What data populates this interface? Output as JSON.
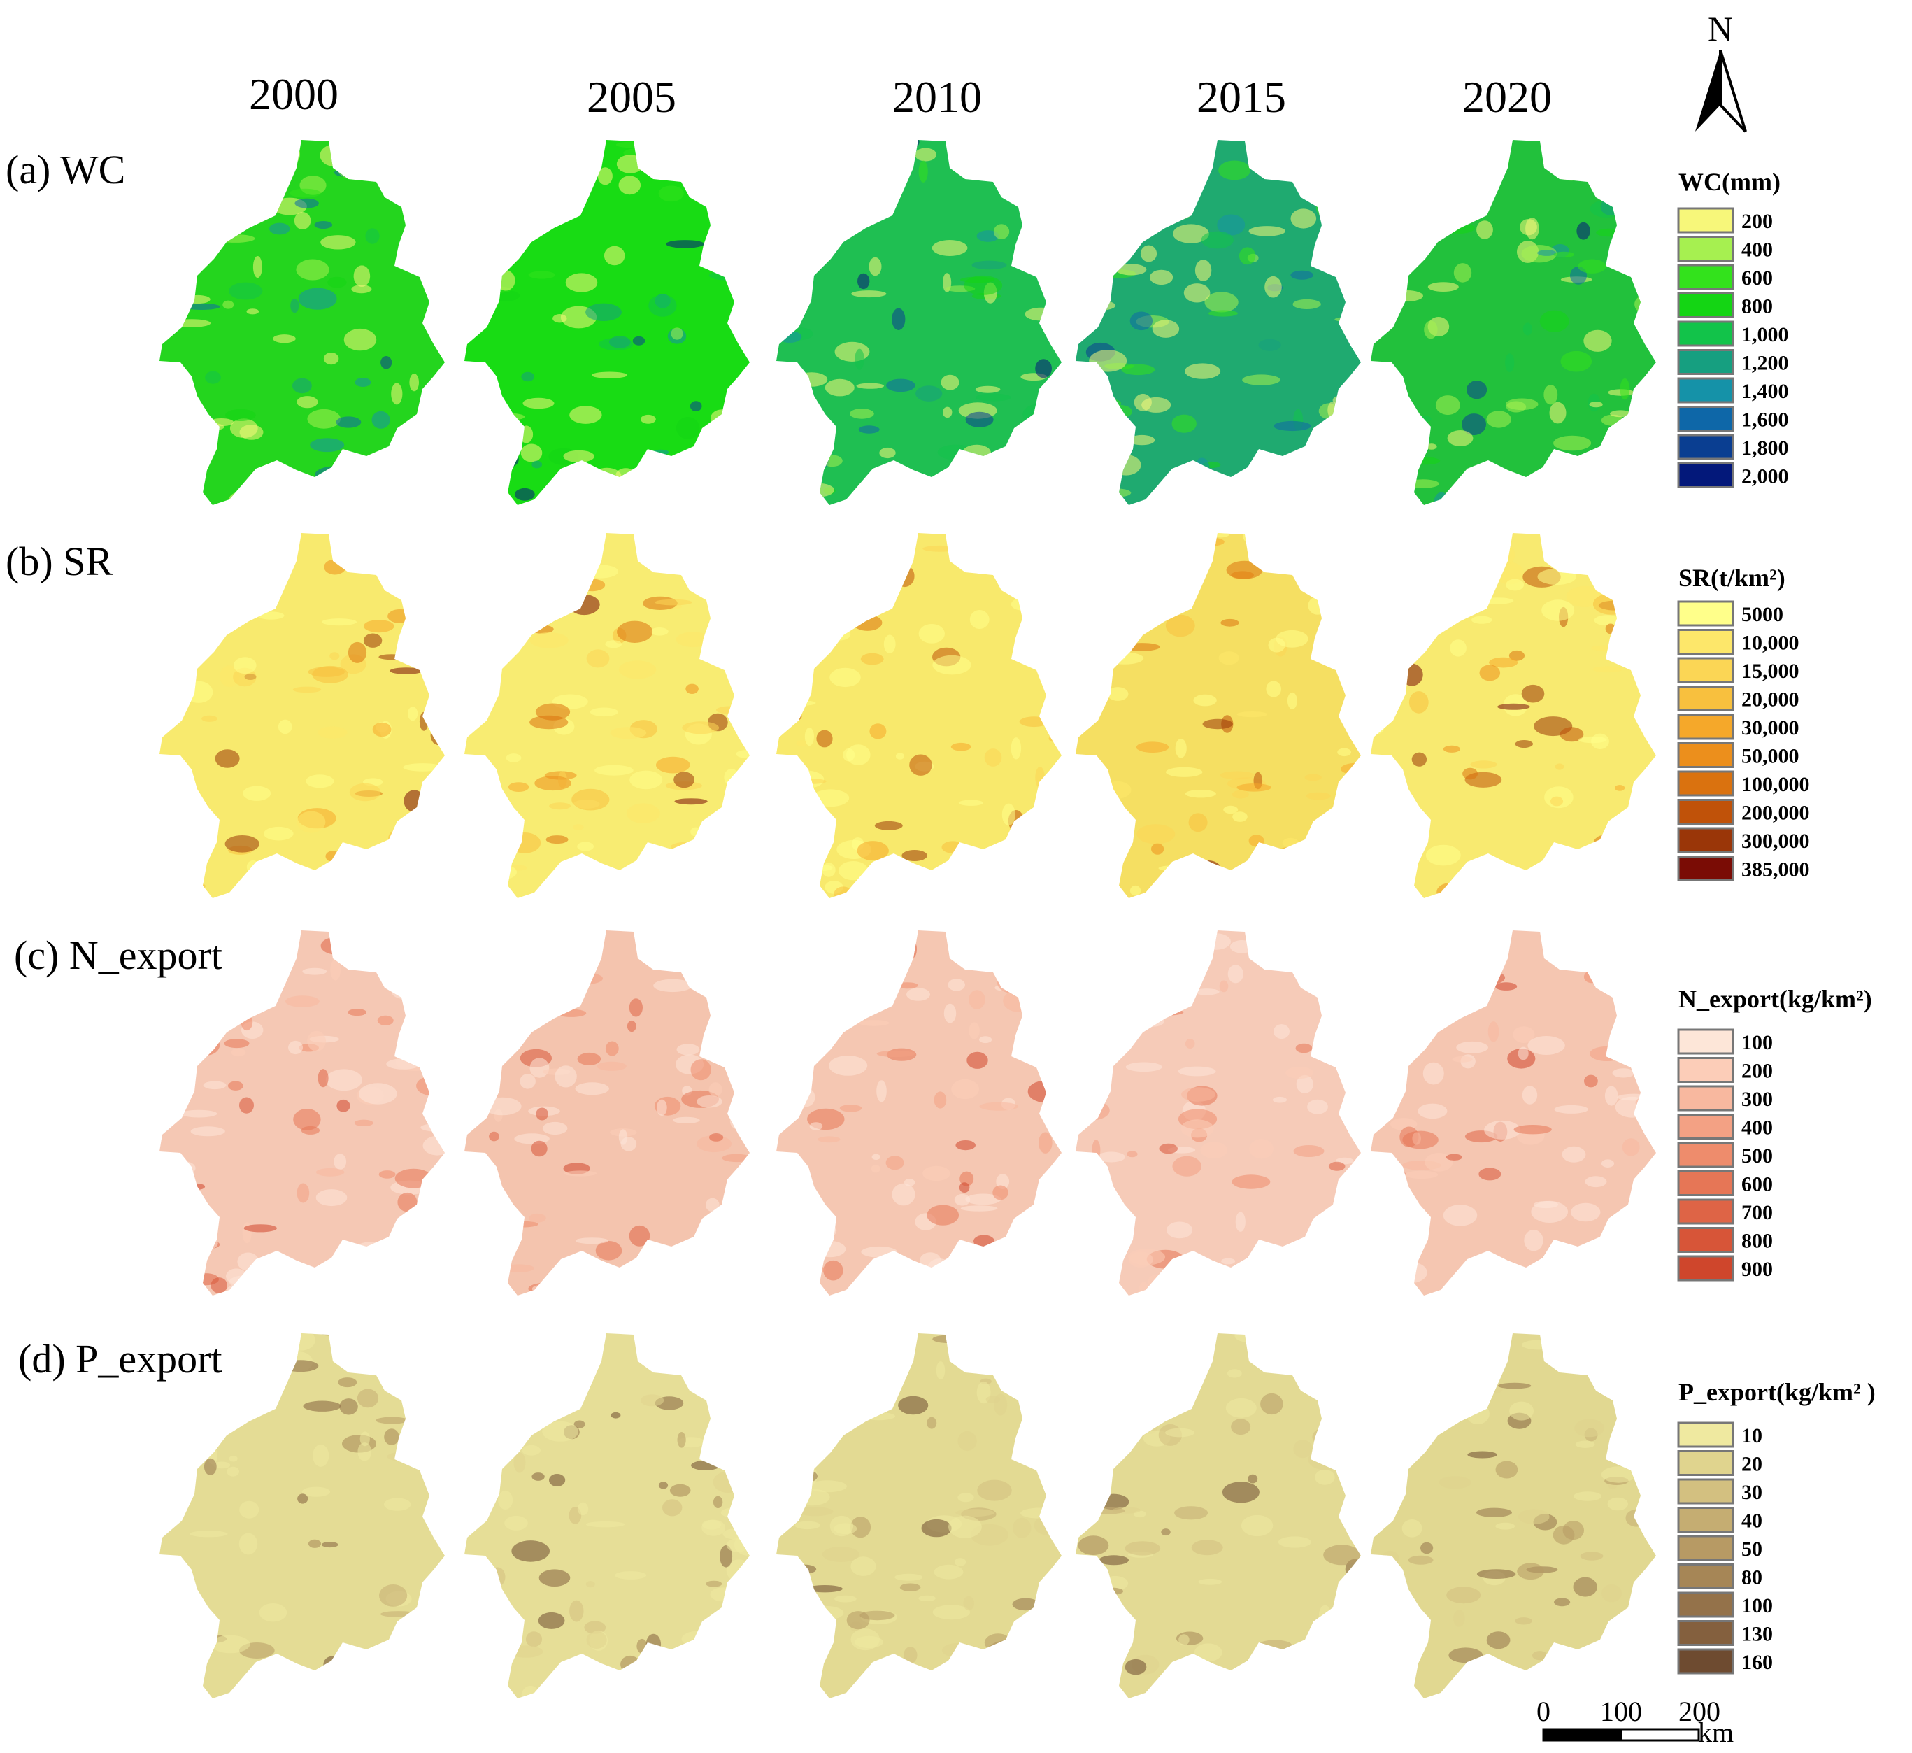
{
  "years": [
    "2000",
    "2005",
    "2010",
    "2015",
    "2020"
  ],
  "north_label": "N",
  "rows": [
    {
      "id": "wc",
      "label": "(a) WC",
      "legend_title": "WC(mm)",
      "legend": [
        {
          "value": "200",
          "color": "#f7f77a"
        },
        {
          "value": "400",
          "color": "#a6f050"
        },
        {
          "value": "600",
          "color": "#33e21c"
        },
        {
          "value": "800",
          "color": "#14d514"
        },
        {
          "value": "1,000",
          "color": "#12c34a"
        },
        {
          "value": "1,200",
          "color": "#169f80"
        },
        {
          "value": "1,400",
          "color": "#1592a8"
        },
        {
          "value": "1,600",
          "color": "#0e67a8"
        },
        {
          "value": "1,800",
          "color": "#0a3e91"
        },
        {
          "value": "2,000",
          "color": "#03187a"
        }
      ],
      "panel_fill": [
        "#24d51e",
        "#18dc14",
        "#1fbf52",
        "#1faa70",
        "#22c13c"
      ]
    },
    {
      "id": "sr",
      "label": "(b) SR",
      "legend_title": "SR(t/km²)",
      "legend": [
        {
          "value": "5000",
          "color": "#ffff8a"
        },
        {
          "value": "10,000",
          "color": "#fde76a"
        },
        {
          "value": "15,000",
          "color": "#fbd655"
        },
        {
          "value": "20,000",
          "color": "#f8c03e"
        },
        {
          "value": "30,000",
          "color": "#f5a82a"
        },
        {
          "value": "50,000",
          "color": "#ec8f1c"
        },
        {
          "value": "100,000",
          "color": "#da720f"
        },
        {
          "value": "200,000",
          "color": "#c05209"
        },
        {
          "value": "300,000",
          "color": "#9a3608"
        },
        {
          "value": "385,000",
          "color": "#7a0c05"
        }
      ],
      "panel_fill": [
        "#f8ea6e",
        "#f8ec72",
        "#f8e96c",
        "#f5df62",
        "#f8ea70"
      ]
    },
    {
      "id": "n",
      "label": "(c) N_export",
      "legend_title": "N_export(kg/km²)",
      "legend": [
        {
          "value": "100",
          "color": "#fde6d8"
        },
        {
          "value": "200",
          "color": "#fccdb8"
        },
        {
          "value": "300",
          "color": "#f8b89f"
        },
        {
          "value": "400",
          "color": "#f3a184"
        },
        {
          "value": "500",
          "color": "#ee8c6c"
        },
        {
          "value": "600",
          "color": "#e67656"
        },
        {
          "value": "700",
          "color": "#de6446"
        },
        {
          "value": "800",
          "color": "#d75538"
        },
        {
          "value": "900",
          "color": "#cf462c"
        }
      ],
      "panel_fill": [
        "#f5c8b4",
        "#f4c4ae",
        "#f5c7b2",
        "#f6cbb8",
        "#f5c6b1"
      ]
    },
    {
      "id": "p",
      "label": "(d) P_export",
      "legend_title": "P_export(kg/km² )",
      "legend": [
        {
          "value": "10",
          "color": "#efe9a0"
        },
        {
          "value": "20",
          "color": "#e0d48e"
        },
        {
          "value": "30",
          "color": "#d3c080"
        },
        {
          "value": "40",
          "color": "#c5ad72"
        },
        {
          "value": "50",
          "color": "#b79a64"
        },
        {
          "value": "80",
          "color": "#a68656"
        },
        {
          "value": "100",
          "color": "#94724a"
        },
        {
          "value": "130",
          "color": "#84603e"
        },
        {
          "value": "160",
          "color": "#6e4b30"
        }
      ],
      "panel_fill": [
        "#e4dc95",
        "#e6de97",
        "#e3da93",
        "#e3da94",
        "#e1d891"
      ]
    }
  ],
  "scale_bar": {
    "ticks": [
      "0",
      "100",
      "200"
    ],
    "unit": "km"
  }
}
